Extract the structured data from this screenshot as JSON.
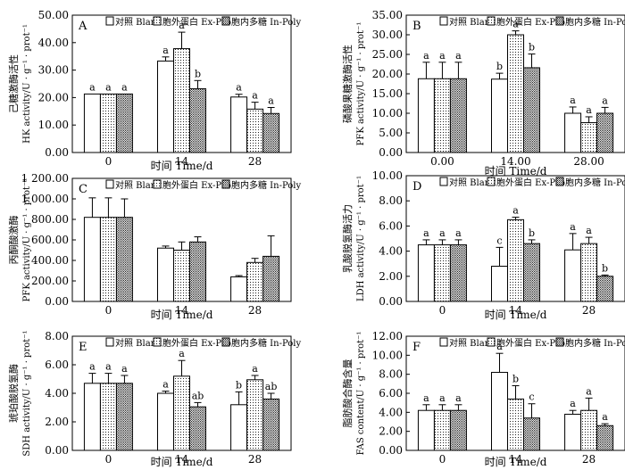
{
  "figure": {
    "legend": [
      "对照 Blank",
      "胞外蛋白 Ex-Pro",
      "胞内多糖 In-Poly"
    ],
    "xlabel": "时间 Time/d"
  },
  "chart_data": [
    {
      "type": "bar",
      "panel": "A",
      "title": "",
      "ylabel_cn": "己糖激酶活性",
      "ylabel_en": "HK activity/U · g⁻¹ · prot⁻¹",
      "xlabel": "时间 Time/d",
      "categories": [
        "0",
        "14",
        "28"
      ],
      "yticks": [
        "0.00",
        "10.00",
        "20.00",
        "30.00",
        "40.00",
        "50.00"
      ],
      "ylim": [
        0,
        50
      ],
      "series": [
        {
          "name": "对照 Blank",
          "values": [
            21.3,
            33.3,
            20.2
          ],
          "errors": [
            0,
            1.5,
            1.0
          ],
          "letters": [
            "a",
            "a",
            "a"
          ]
        },
        {
          "name": "胞外蛋白 Ex-Pro",
          "values": [
            21.3,
            37.8,
            15.8
          ],
          "errors": [
            0,
            6.0,
            2.5
          ],
          "letters": [
            "a",
            "a",
            "a"
          ]
        },
        {
          "name": "胞内多糖 In-Poly",
          "values": [
            21.3,
            23.2,
            14.2
          ],
          "errors": [
            0,
            3.0,
            2.2
          ],
          "letters": [
            "a",
            "b",
            "a"
          ]
        }
      ]
    },
    {
      "type": "bar",
      "panel": "B",
      "title": "",
      "ylabel_cn": "磷酸果糖激酶活性",
      "ylabel_en": "PFK activity/U · g⁻¹ · prot⁻¹",
      "xlabel": "时间 Time/d",
      "categories": [
        "0.00",
        "14.00",
        "28.00"
      ],
      "yticks": [
        "0.00",
        "5.00",
        "10.00",
        "15.00",
        "20.00",
        "25.00",
        "30.00",
        "35.00"
      ],
      "ylim": [
        0,
        35
      ],
      "series": [
        {
          "name": "对照 Blank",
          "values": [
            18.8,
            18.7,
            10.0
          ],
          "errors": [
            4.2,
            1.5,
            1.6
          ],
          "letters": [
            "a",
            "b",
            "a"
          ]
        },
        {
          "name": "胞外蛋白 Ex-Pro",
          "values": [
            18.8,
            30.0,
            7.6
          ],
          "errors": [
            4.2,
            1.0,
            1.5
          ],
          "letters": [
            "a",
            "a",
            "a"
          ]
        },
        {
          "name": "胞内多糖 In-Poly",
          "values": [
            18.8,
            21.6,
            10.0
          ],
          "errors": [
            4.2,
            3.5,
            1.5
          ],
          "letters": [
            "a",
            "b",
            "a"
          ]
        }
      ]
    },
    {
      "type": "bar",
      "panel": "C",
      "title": "",
      "ylabel_cn": "丙酮酸激酶",
      "ylabel_en": "PFK activity/U · g⁻¹ · prot⁻¹",
      "xlabel": "时间 Time/d",
      "categories": [
        "0",
        "14",
        "28"
      ],
      "yticks": [
        "0.00",
        "200.00",
        "400.00",
        "600.00",
        "800.00",
        "1 000.00",
        "1 200.00"
      ],
      "ylim": [
        0,
        1200
      ],
      "series": [
        {
          "name": "对照 Blank",
          "values": [
            820,
            520,
            240
          ],
          "errors": [
            190,
            20,
            12
          ],
          "letters": [
            "",
            "",
            ""
          ]
        },
        {
          "name": "胞外蛋白 Ex-Pro",
          "values": [
            820,
            500,
            380
          ],
          "errors": [
            190,
            80,
            40
          ],
          "letters": [
            "",
            "",
            ""
          ]
        },
        {
          "name": "胞内多糖 In-Poly",
          "values": [
            820,
            580,
            440
          ],
          "errors": [
            180,
            50,
            200
          ],
          "letters": [
            "",
            "",
            ""
          ]
        }
      ]
    },
    {
      "type": "bar",
      "panel": "D",
      "title": "",
      "ylabel_cn": "乳酸脱氢酶活力",
      "ylabel_en": "LDH activity/U · g⁻¹ · prot⁻¹",
      "xlabel": "时间 Time/d",
      "categories": [
        "0",
        "14",
        "28"
      ],
      "yticks": [
        "0.00",
        "2.00",
        "4.00",
        "6.00",
        "8.00",
        "10.00"
      ],
      "ylim": [
        0,
        10
      ],
      "series": [
        {
          "name": "对照 Blank",
          "values": [
            4.5,
            2.8,
            4.1
          ],
          "errors": [
            0.4,
            1.5,
            1.3
          ],
          "letters": [
            "a",
            "c",
            "a"
          ]
        },
        {
          "name": "胞外蛋白 Ex-Pro",
          "values": [
            4.5,
            6.5,
            4.6
          ],
          "errors": [
            0.4,
            0.2,
            0.5
          ],
          "letters": [
            "a",
            "a",
            "a"
          ]
        },
        {
          "name": "胞内多糖 In-Poly",
          "values": [
            4.5,
            4.6,
            2.0
          ],
          "errors": [
            0.4,
            0.3,
            0.1
          ],
          "letters": [
            "a",
            "b",
            "b"
          ]
        }
      ]
    },
    {
      "type": "bar",
      "panel": "E",
      "title": "",
      "ylabel_cn": "琥珀酸脱氢酶",
      "ylabel_en": "SDH activity/U · g⁻¹ · prot⁻¹",
      "xlabel": "时间 Time/d",
      "categories": [
        "0",
        "14",
        "28"
      ],
      "yticks": [
        "0.00",
        "2.00",
        "4.00",
        "6.00",
        "8.00"
      ],
      "ylim": [
        0,
        8
      ],
      "series": [
        {
          "name": "对照 Blank",
          "values": [
            4.7,
            4.0,
            3.2
          ],
          "errors": [
            0.7,
            0.15,
            0.9
          ],
          "letters": [
            "a",
            "a",
            "b"
          ]
        },
        {
          "name": "胞外蛋白 Ex-Pro",
          "values": [
            4.7,
            5.2,
            4.95
          ],
          "errors": [
            0.7,
            1.1,
            0.3
          ],
          "letters": [
            "a",
            "a",
            "a"
          ]
        },
        {
          "name": "胞内多糖 In-Poly",
          "values": [
            4.7,
            3.05,
            3.6
          ],
          "errors": [
            0.55,
            0.3,
            0.4
          ],
          "letters": [
            "a",
            "ab",
            "ab"
          ]
        }
      ]
    },
    {
      "type": "bar",
      "panel": "F",
      "title": "",
      "ylabel_cn": "脂肪酸合酶含量",
      "ylabel_en": "FAS content/U · g⁻¹ · prot⁻¹",
      "xlabel": "时间 Time/d",
      "categories": [
        "0",
        "14",
        "28"
      ],
      "yticks": [
        "0.00",
        "2.00",
        "4.00",
        "6.00",
        "8.00",
        "10.00",
        "12.00"
      ],
      "ylim": [
        0,
        12
      ],
      "series": [
        {
          "name": "对照 Blank",
          "values": [
            4.2,
            8.2,
            3.8
          ],
          "errors": [
            0.6,
            2.0,
            0.4
          ],
          "letters": [
            "a",
            "a",
            "a"
          ]
        },
        {
          "name": "胞外蛋白 Ex-Pro",
          "values": [
            4.2,
            5.4,
            4.2
          ],
          "errors": [
            0.6,
            1.4,
            1.3
          ],
          "letters": [
            "a",
            "b",
            "a"
          ]
        },
        {
          "name": "胞内多糖 In-Poly",
          "values": [
            4.2,
            3.4,
            2.6
          ],
          "errors": [
            0.6,
            1.5,
            0.2
          ],
          "letters": [
            "a",
            "c",
            "a"
          ]
        }
      ]
    }
  ]
}
